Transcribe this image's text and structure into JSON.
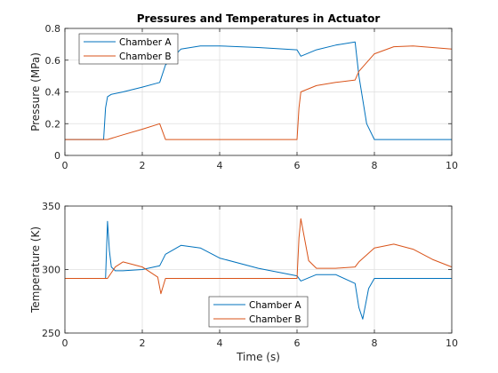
{
  "chart_data": [
    {
      "type": "line",
      "title": "Pressures and Temperatures in Actuator",
      "xlabel": "",
      "ylabel": "Pressure (MPa)",
      "xlim": [
        0,
        10
      ],
      "ylim": [
        0,
        0.8
      ],
      "xticks": [
        0,
        2,
        4,
        6,
        8,
        10
      ],
      "yticks": [
        0,
        0.2,
        0.4,
        0.6,
        0.8
      ],
      "xtick_labels": [
        "0",
        "2",
        "4",
        "6",
        "8",
        "10"
      ],
      "ytick_labels": [
        "0",
        "0.2",
        "0.4",
        "0.6",
        "0.8"
      ],
      "grid": true,
      "legend_position": "top-left",
      "series": [
        {
          "name": "Chamber A",
          "color": "#0072BD",
          "x": [
            0,
            1.0,
            1.05,
            1.1,
            1.2,
            1.5,
            2.0,
            2.45,
            2.6,
            3.0,
            3.5,
            4.0,
            5.0,
            6.0,
            6.1,
            6.5,
            7.0,
            7.5,
            7.6,
            7.8,
            8.0,
            8.5,
            10
          ],
          "y": [
            0.1,
            0.1,
            0.3,
            0.37,
            0.385,
            0.4,
            0.43,
            0.46,
            0.57,
            0.67,
            0.69,
            0.69,
            0.68,
            0.665,
            0.625,
            0.665,
            0.695,
            0.715,
            0.5,
            0.2,
            0.1,
            0.1,
            0.1
          ]
        },
        {
          "name": "Chamber B",
          "color": "#D95319",
          "x": [
            0,
            1.1,
            1.5,
            2.0,
            2.45,
            2.6,
            3.0,
            4.0,
            6.0,
            6.05,
            6.1,
            6.5,
            7.0,
            7.5,
            7.6,
            8.0,
            8.5,
            9.0,
            9.5,
            10
          ],
          "y": [
            0.1,
            0.1,
            0.13,
            0.165,
            0.2,
            0.1,
            0.1,
            0.1,
            0.1,
            0.3,
            0.4,
            0.44,
            0.46,
            0.475,
            0.53,
            0.64,
            0.685,
            0.69,
            0.68,
            0.67
          ]
        }
      ]
    },
    {
      "type": "line",
      "title": "",
      "xlabel": "Time (s)",
      "ylabel": "Temperature (K)",
      "xlim": [
        0,
        10
      ],
      "ylim": [
        250,
        350
      ],
      "xticks": [
        0,
        2,
        4,
        6,
        8,
        10
      ],
      "yticks": [
        250,
        300,
        350
      ],
      "xtick_labels": [
        "0",
        "2",
        "4",
        "6",
        "8",
        "10"
      ],
      "ytick_labels": [
        "250",
        "300",
        "350"
      ],
      "grid": true,
      "legend_position": "bottom-center",
      "series": [
        {
          "name": "Chamber A",
          "color": "#0072BD",
          "x": [
            0,
            1.05,
            1.1,
            1.15,
            1.2,
            1.3,
            1.5,
            2.0,
            2.45,
            2.6,
            3.0,
            3.5,
            4.0,
            5.0,
            6.0,
            6.1,
            6.5,
            7.0,
            7.5,
            7.6,
            7.7,
            7.85,
            8.0,
            10
          ],
          "y": [
            293,
            293,
            338,
            315,
            302,
            299,
            299,
            300,
            303,
            312,
            319,
            317,
            309,
            301,
            295,
            291,
            296,
            296,
            289,
            270,
            261,
            285,
            293,
            293
          ]
        },
        {
          "name": "Chamber B",
          "color": "#D95319",
          "x": [
            0,
            1.1,
            1.3,
            1.5,
            2.0,
            2.4,
            2.48,
            2.6,
            3.0,
            4.0,
            6.0,
            6.05,
            6.1,
            6.3,
            6.5,
            7.0,
            7.5,
            7.6,
            8.0,
            8.5,
            9.0,
            9.5,
            10
          ],
          "y": [
            293,
            293,
            302,
            306,
            302,
            294,
            281,
            293,
            293,
            293,
            293,
            325,
            340,
            307,
            301,
            301,
            302,
            306,
            317,
            320,
            316,
            308,
            302
          ]
        }
      ]
    }
  ]
}
